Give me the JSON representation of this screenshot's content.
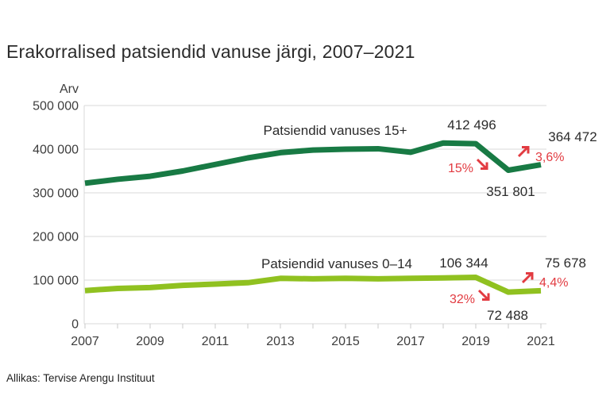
{
  "title": "Erakorralised patsiendid vanuse järgi, 2007–2021",
  "source": "Allikas: Tervise Arengu Instituut",
  "colors": {
    "series_15plus": "#187a44",
    "series_0_14": "#90c120",
    "annotation_red": "#e23b41",
    "text_dark": "#2b2b2b",
    "label_text": "#3d3d3d",
    "grid": "#d9d9d9",
    "tick": "#c9c9c9"
  },
  "chart_data": {
    "type": "line",
    "x": [
      2007,
      2008,
      2009,
      2010,
      2011,
      2012,
      2013,
      2014,
      2015,
      2016,
      2017,
      2018,
      2019,
      2020,
      2021
    ],
    "xticks": [
      2007,
      2009,
      2011,
      2013,
      2015,
      2017,
      2019,
      2021
    ],
    "ylabel": "Arv",
    "ylim": [
      0,
      500000
    ],
    "yticks": [
      {
        "value": 500000,
        "label": "500 000"
      },
      {
        "value": 400000,
        "label": "400 000"
      },
      {
        "value": 300000,
        "label": "300 000"
      },
      {
        "value": 200000,
        "label": "200 000"
      },
      {
        "value": 100000,
        "label": "100 000"
      },
      {
        "value": 0,
        "label": "0"
      }
    ],
    "grid": true,
    "legend_position": "inline-labels",
    "series": [
      {
        "name": "Patsiendid vanuses 15+",
        "color_key": "series_15plus",
        "values": [
          322000,
          331000,
          338000,
          350000,
          365000,
          380000,
          392000,
          398000,
          400000,
          401000,
          393000,
          414000,
          412496,
          351801,
          364472
        ]
      },
      {
        "name": "Patsiendid vanuses 0–14",
        "color_key": "series_0_14",
        "values": [
          76000,
          81000,
          83000,
          88000,
          91000,
          94000,
          104000,
          103000,
          104000,
          103000,
          104000,
          105000,
          106344,
          72488,
          75678
        ]
      }
    ],
    "point_labels": [
      {
        "text": "412 496",
        "series": "Patsiendid vanuses 15+",
        "year": 2019
      },
      {
        "text": "364 472",
        "series": "Patsiendid vanuses 15+",
        "year": 2021
      },
      {
        "text": "351 801",
        "series": "Patsiendid vanuses 15+",
        "year": 2020
      },
      {
        "text": "106 344",
        "series": "Patsiendid vanuses 0–14",
        "year": 2019
      },
      {
        "text": "75 678",
        "series": "Patsiendid vanuses 0–14",
        "year": 2021
      },
      {
        "text": "72 488",
        "series": "Patsiendid vanuses 0–14",
        "year": 2020
      }
    ],
    "annotations": [
      {
        "text": "15%",
        "trend": "down",
        "series": "Patsiendid vanuses 15+"
      },
      {
        "text": "3,6%",
        "trend": "up",
        "series": "Patsiendid vanuses 15+"
      },
      {
        "text": "32%",
        "trend": "down",
        "series": "Patsiendid vanuses 0–14"
      },
      {
        "text": "4,4%",
        "trend": "up",
        "series": "Patsiendid vanuses 0–14"
      }
    ]
  }
}
